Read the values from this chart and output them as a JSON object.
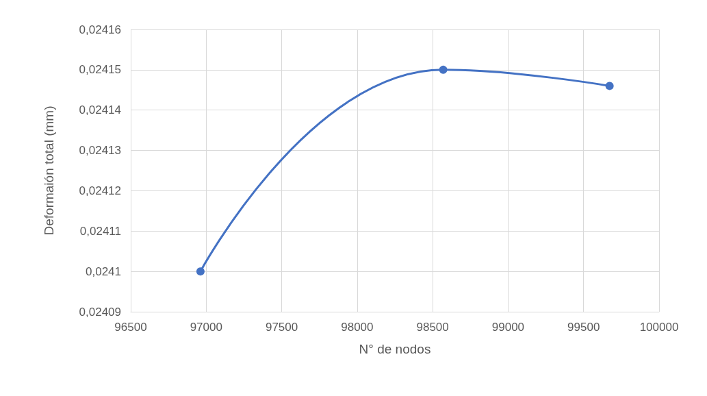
{
  "chart_data": {
    "type": "line",
    "xlabel": "N° de nodos",
    "ylabel": "Deformaión total (mm)",
    "x": [
      96962,
      98570,
      99672
    ],
    "series": [
      {
        "color": "#4472c4",
        "values": [
          0.0241,
          0.02415,
          0.024146
        ]
      }
    ],
    "xlim": [
      96500,
      100000
    ],
    "xticks": [
      96500,
      97000,
      97500,
      98000,
      98500,
      99000,
      99500,
      100000
    ],
    "ylim": [
      0.02409,
      0.02416
    ],
    "yticks": [
      {
        "value": 0.02409,
        "label": "0,02409"
      },
      {
        "value": 0.0241,
        "label": "0,0241"
      },
      {
        "value": 0.02411,
        "label": "0,02411"
      },
      {
        "value": 0.02412,
        "label": "0,02412"
      },
      {
        "value": 0.02413,
        "label": "0,02413"
      },
      {
        "value": 0.02414,
        "label": "0,02414"
      },
      {
        "value": 0.02415,
        "label": "0,02415"
      },
      {
        "value": 0.02416,
        "label": "0,02416"
      }
    ],
    "grid": true,
    "marker": "circle",
    "line_style": "solid"
  }
}
